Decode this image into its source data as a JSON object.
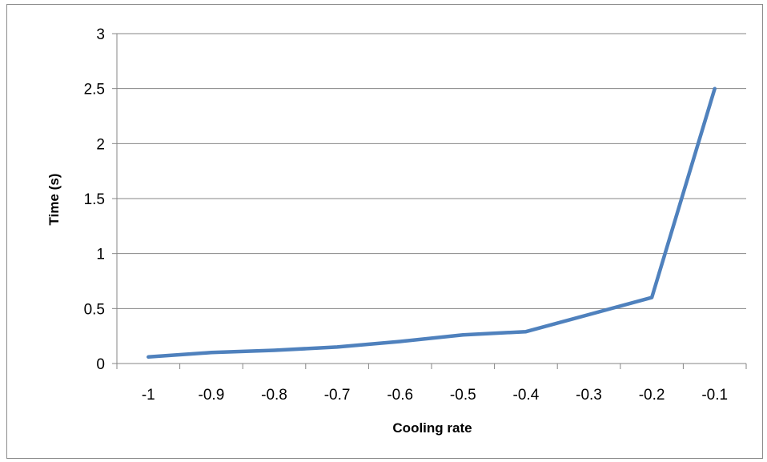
{
  "chart_data": {
    "type": "line",
    "title": "",
    "xlabel": "Cooling rate",
    "ylabel": "Time (s)",
    "categories": [
      "-1",
      "-0.9",
      "-0.8",
      "-0.7",
      "-0.6",
      "-0.5",
      "-0.4",
      "-0.3",
      "-0.2",
      "-0.1"
    ],
    "series": [
      {
        "values": [
          0.06,
          0.1,
          0.12,
          0.15,
          0.2,
          0.26,
          0.29,
          null,
          0.6,
          2.5
        ]
      }
    ],
    "ylim": [
      0,
      3
    ],
    "yticks": [
      "0",
      "0.5",
      "1",
      "1.5",
      "2",
      "2.5",
      "3"
    ],
    "grid": "horizontal",
    "legend": "none",
    "colors": {
      "line": "#4f81bd",
      "grid": "#868686",
      "axis": "#868686"
    }
  }
}
